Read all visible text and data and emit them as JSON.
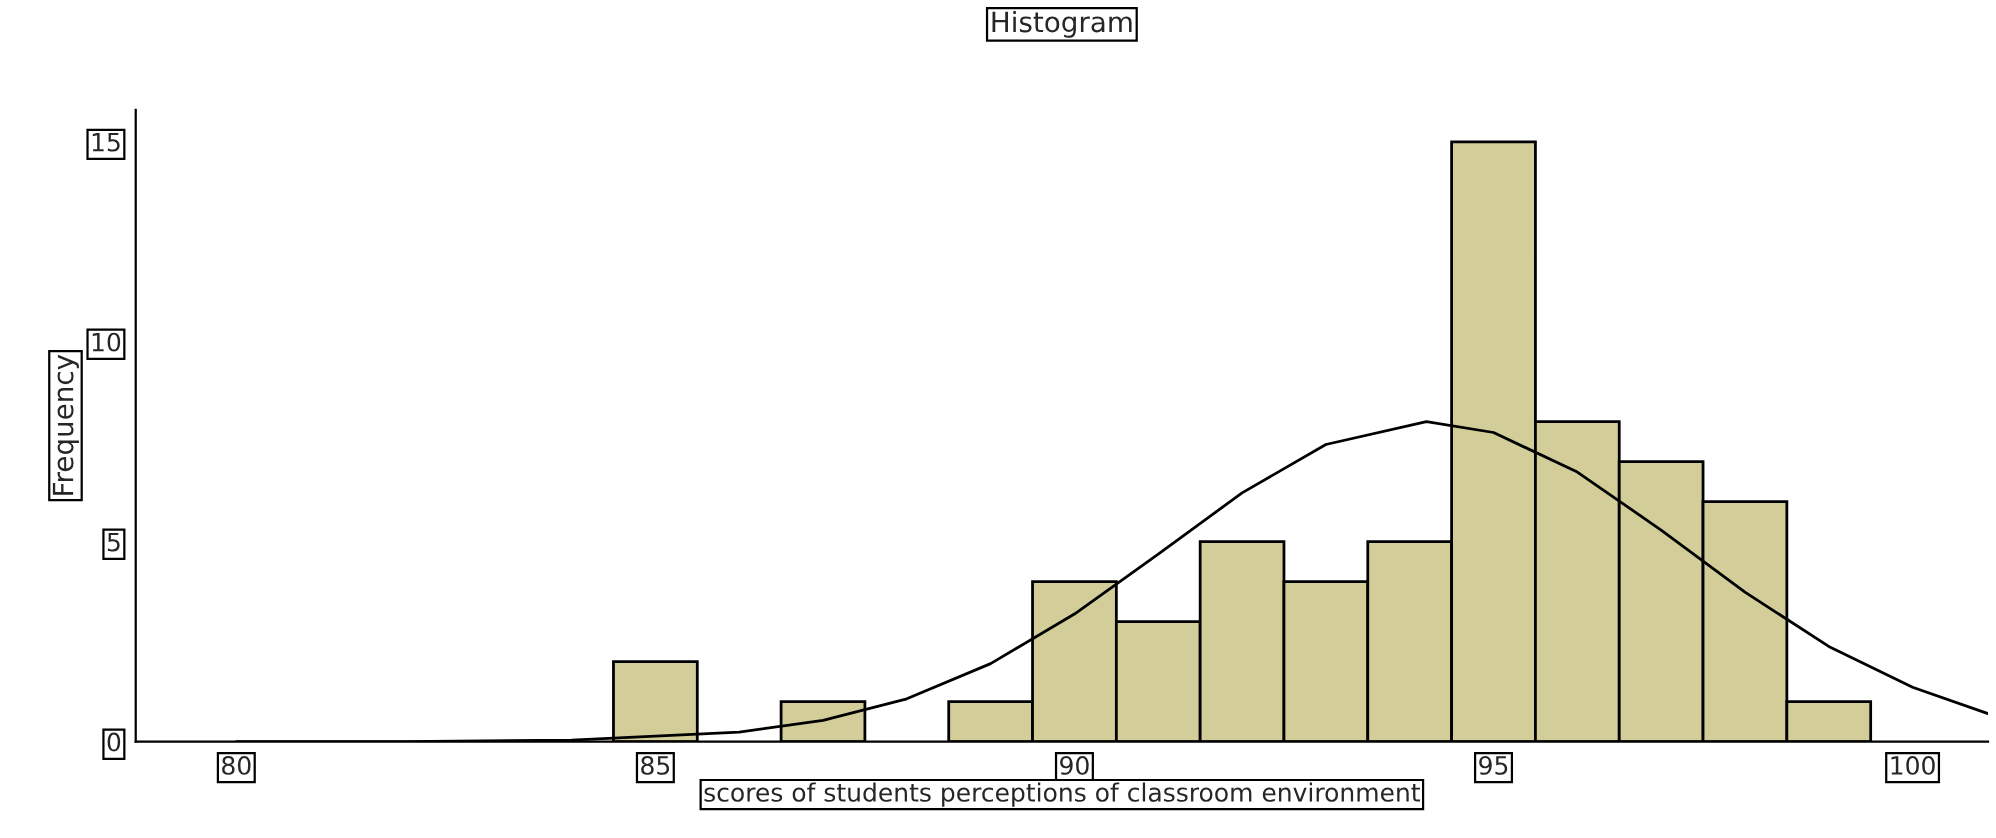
{
  "chart_data": {
    "type": "histogram",
    "title": "Histogram",
    "xlabel": "scores of students perceptions of classroom environment",
    "ylabel": "Frequency",
    "bins": [
      84.5,
      85.5,
      86.5,
      87.5,
      88.5,
      89.5,
      90.5,
      91.5,
      92.5,
      93.5,
      94.5,
      95.5,
      96.5,
      97.5,
      98.5,
      99.5
    ],
    "values": [
      2,
      0,
      1,
      0,
      1,
      4,
      3,
      5,
      4,
      5,
      15,
      8,
      7,
      6,
      1
    ],
    "color": "#d3cd99",
    "series": [
      {
        "type": "line",
        "color": "#000000",
        "x": [
          80,
          82,
          84,
          86,
          87,
          88,
          89,
          90,
          91,
          92,
          93,
          94.2,
          95,
          96,
          97,
          98,
          99,
          100,
          100.9
        ],
        "values": [
          0,
          0,
          0.04,
          0.24,
          0.53,
          1.07,
          1.95,
          3.19,
          4.69,
          6.22,
          7.43,
          8,
          7.73,
          6.74,
          5.29,
          3.74,
          2.38,
          1.36,
          0.7
        ]
      }
    ],
    "xlim": [
      78.8,
      100.9
    ],
    "ylim": [
      0,
      15.8
    ],
    "xticks": [
      80,
      85,
      90,
      95,
      100
    ],
    "yticks": [
      0,
      5,
      10,
      15
    ],
    "grid": false
  }
}
